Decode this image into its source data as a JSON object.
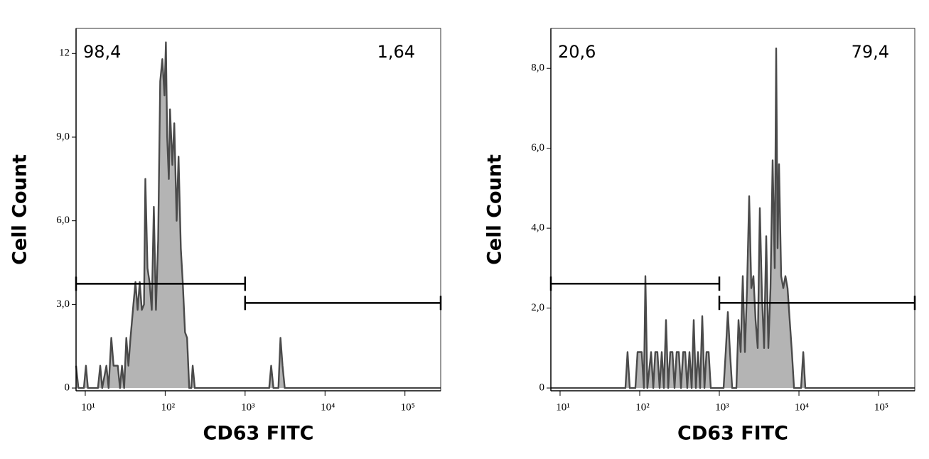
{
  "chart_data": [
    {
      "type": "area",
      "x_label": "CD63 FITC",
      "y_label": "Cell Count",
      "xscale": "log",
      "fill_color": "#b4b4b4",
      "line_color": "#4a4a4a",
      "xlim": [
        7.67,
        280000
      ],
      "ylim": [
        -0.1,
        12.9
      ],
      "xticks": [
        {
          "value": 10,
          "label": "10¹"
        },
        {
          "value": 100,
          "label": "10²"
        },
        {
          "value": 1000,
          "label": "10³"
        },
        {
          "value": 10000,
          "label": "10⁴"
        },
        {
          "value": 100000,
          "label": "10⁵"
        }
      ],
      "yticks": [
        0,
        {
          "value": 3,
          "label": "3,0"
        },
        {
          "value": 6,
          "label": "6,0"
        },
        {
          "value": 9,
          "label": "9,0"
        },
        12
      ],
      "x": [
        7.67,
        8.2,
        9.6,
        10.2,
        10.8,
        14.4,
        15.4,
        16.3,
        18.4,
        19.6,
        21.2,
        22.6,
        24.0,
        25.5,
        27.2,
        28.8,
        30.7,
        32.6,
        34.7,
        36.8,
        40.0,
        42.5,
        45.2,
        48.0,
        51.0,
        54.3,
        56.5,
        60.1,
        63.8,
        67.9,
        72.1,
        76.7,
        81.6,
        86.7,
        92.2,
        98,
        102,
        106,
        111,
        115,
        123,
        130,
        139,
        147,
        157,
        166,
        177,
        188,
        200,
        212,
        221,
        235,
        2000,
        2120,
        2260,
        2610,
        2770,
        2940,
        3130,
        280000
      ],
      "values": [
        0.8,
        0,
        0,
        0.8,
        0,
        0,
        0.8,
        0,
        0.8,
        0,
        1.8,
        0.8,
        0.8,
        0.8,
        0,
        0.8,
        0,
        1.8,
        0.8,
        1.8,
        3.0,
        3.8,
        2.8,
        3.8,
        2.8,
        3.0,
        7.5,
        4.3,
        3.8,
        2.8,
        6.5,
        2.8,
        5.3,
        11.0,
        11.8,
        10.5,
        12.4,
        9.0,
        7.5,
        10.0,
        8.0,
        9.5,
        6.0,
        8.3,
        5.0,
        3.8,
        2.0,
        1.8,
        0,
        0,
        0.8,
        0,
        0,
        0.8,
        0,
        0,
        1.8,
        0.8,
        0,
        0
      ],
      "gates": [
        {
          "label": "98,4",
          "x": [
            7.67,
            1000
          ],
          "y": 3.74
        },
        {
          "label": "1,64",
          "x": [
            1000,
            280000
          ],
          "y": 3.05
        }
      ]
    },
    {
      "type": "area",
      "x_label": "CD63 FITC",
      "y_label": "Cell Count",
      "xscale": "log",
      "fill_color": "#b4b4b4",
      "line_color": "#4a4a4a",
      "xlim": [
        7.66,
        285000
      ],
      "ylim": [
        -0.07,
        9.0
      ],
      "xticks": [
        {
          "value": 10,
          "label": "10¹"
        },
        {
          "value": 100,
          "label": "10²"
        },
        {
          "value": 1000,
          "label": "10³"
        },
        {
          "value": 10000,
          "label": "10⁴"
        },
        {
          "value": 100000,
          "label": "10⁵"
        }
      ],
      "yticks": [
        0,
        {
          "value": 2,
          "label": "2,0"
        },
        {
          "value": 4,
          "label": "4,0"
        },
        {
          "value": 6,
          "label": "6,0"
        },
        {
          "value": 8,
          "label": "8,0"
        }
      ],
      "x": [
        7.66,
        66.2,
        70.4,
        75.0,
        88.3,
        94.0,
        106,
        113,
        118,
        125,
        139,
        148,
        157,
        167,
        178,
        189,
        201,
        214,
        228,
        242,
        258,
        274,
        291,
        310,
        330,
        351,
        373,
        396,
        422,
        449,
        477,
        507,
        540,
        574,
        611,
        650,
        691,
        735,
        782,
        1132,
        1204,
        1280,
        1362,
        1449,
        1638,
        1742,
        1854,
        1972,
        2096,
        2230,
        2372,
        2523,
        2684,
        2853,
        3035,
        3229,
        3435,
        3654,
        3884,
        4132,
        4395,
        4675,
        4966,
        5176,
        5397,
        5623,
        5980,
        6364,
        6761,
        7194,
        7656,
        8147,
        8670,
        10640,
        11320,
        12030,
        285000
      ],
      "values": [
        0,
        0,
        0.9,
        0,
        0,
        0.9,
        0.9,
        0,
        2.8,
        0,
        0.9,
        0,
        0.9,
        0.9,
        0,
        0.9,
        0,
        1.7,
        0,
        0.9,
        0.9,
        0,
        0.9,
        0.9,
        0,
        0.9,
        0.9,
        0,
        0.9,
        0,
        1.7,
        0,
        0.9,
        0,
        1.8,
        0,
        0.9,
        0.9,
        0,
        0,
        0.9,
        1.9,
        0.9,
        0,
        0,
        1.7,
        0.9,
        2.8,
        0.9,
        2.5,
        4.8,
        2.5,
        2.8,
        1.7,
        1.0,
        4.5,
        2.3,
        1.0,
        3.8,
        1.0,
        2.5,
        5.7,
        3.0,
        8.5,
        3.5,
        5.6,
        2.8,
        2.5,
        2.8,
        2.5,
        1.7,
        0.9,
        0,
        0,
        0.9,
        0,
        0
      ],
      "gates": [
        {
          "label": "20,6",
          "x": [
            7.66,
            1000
          ],
          "y": 2.61
        },
        {
          "label": "79,4",
          "x": [
            1000,
            285000
          ],
          "y": 2.13
        }
      ]
    }
  ]
}
